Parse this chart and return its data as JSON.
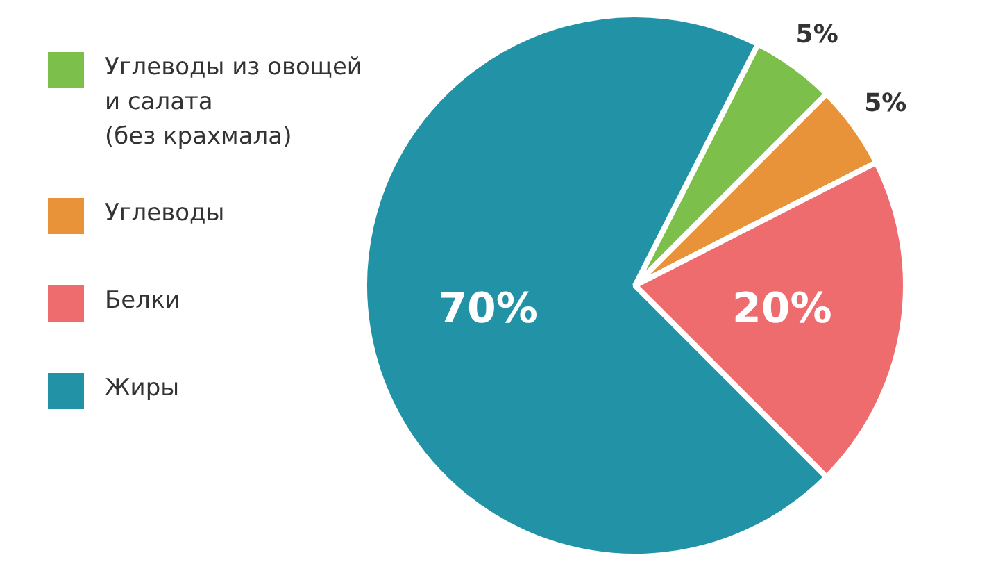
{
  "chart_data": {
    "type": "pie",
    "categories": [
      "Углеводы из овощей\nи салата\n(без крахмала)",
      "Углеводы",
      "Белки",
      "Жиры"
    ],
    "values": [
      5,
      5,
      20,
      70
    ],
    "colors": [
      "#7cbf4b",
      "#e8923a",
      "#ee6b6e",
      "#2292a7"
    ],
    "value_labels": [
      "5%",
      "5%",
      "20%",
      "70%"
    ],
    "legend": "left"
  }
}
